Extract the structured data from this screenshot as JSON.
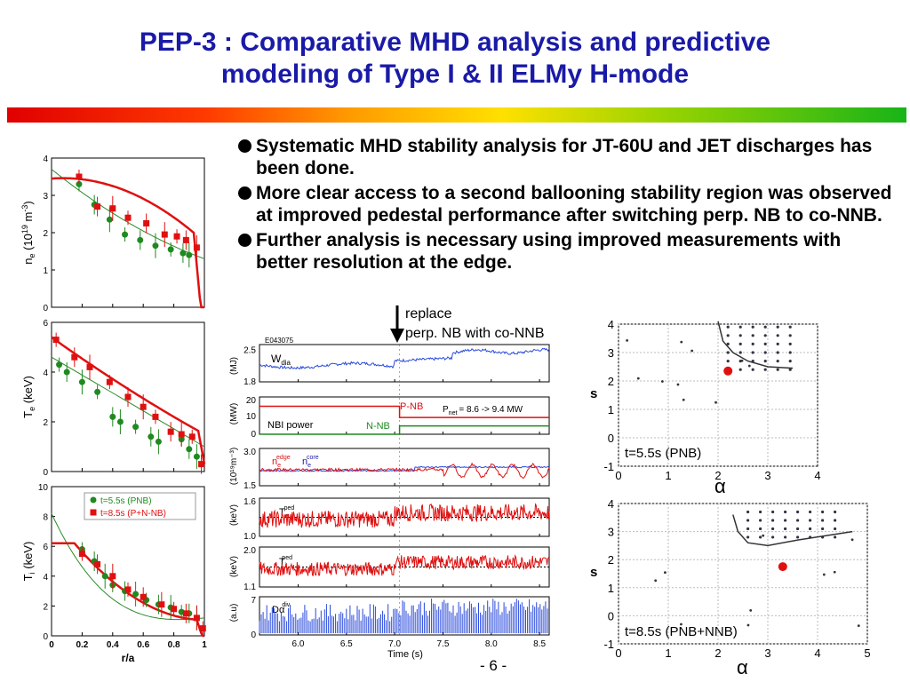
{
  "slide": {
    "title_line1": "PEP-3 : Comparative MHD analysis and predictive",
    "title_line2": "modeling of Type I & II ELMy H-mode",
    "bullets": [
      "Systematic MHD stability analysis for JT-60U and JET discharges has been done.",
      "More clear access to a second ballooning stability region was observed at improved pedestal performance after switching perp. NB to co-NNB.",
      "Further analysis is necessary using improved measurements with better resolution at the edge."
    ],
    "page_number": "- 6 -"
  },
  "profiles": {
    "ne_label": "n",
    "ne_sub": "e",
    "ne_unit_a": " (10",
    "ne_unit_sup": "19",
    "ne_unit_b": " m",
    "ne_unit_sup2": "-3",
    "ne_unit_c": ")",
    "te_label": "T",
    "te_sub": "e",
    "te_unit": " (keV)",
    "ti_label": "T",
    "ti_sub": "i",
    "ti_unit": " (keV)",
    "xlabel": "r/a",
    "legend_pnb": "t=5.5s (PNB)",
    "legend_pnnb": "t=8.5s (P+N-NB)",
    "colors": {
      "pnb": "#1f8a1f",
      "pnnb": "#e01010"
    }
  },
  "timetraces": {
    "shot": "E043075",
    "wdia": "W",
    "wdia_sub": "dia",
    "wdia_unit": "(MJ)",
    "nbi_unit": "(MW)",
    "nbi_label": "NBI power",
    "pnb_label": "P-NB",
    "nnb_label": "N-NB",
    "pnet_label": "P",
    "pnet_sub": "net",
    "pnet_value": "= 8.6  -> 9.4 MW",
    "ne_unit": "(10¹⁹m⁻³)",
    "ne_edge": "n",
    "ne_edge_sub": "e",
    "ne_edge_sup": "edge",
    "ne_core": "n",
    "ne_core_sub": "e",
    "ne_core_sup": "core",
    "te_unit": "(keV)",
    "te_label": "T",
    "te_sub": "e",
    "te_sup": "ped",
    "ti_unit": "(keV)",
    "ti_label": "T",
    "ti_sub": "i",
    "ti_sup": "ped",
    "da_unit": "(a.u)",
    "da_label": "Dα",
    "da_sup": "div",
    "xlabel": "Time (s)",
    "annotation_line1": "replace",
    "annotation_line2": "perp. NB with co-NNB"
  },
  "stability": {
    "ylabel": "s",
    "xlabel": "α",
    "top_label": "t=5.5s (PNB)",
    "bottom_label": "t=8.5s (PNB+NNB)"
  },
  "chart_data": [
    {
      "type": "scatter",
      "title": "",
      "xlabel": "r/a",
      "ylabel": "ne (10^19 m^-3)",
      "xlim": [
        0,
        1
      ],
      "ylim": [
        0,
        4
      ],
      "x_ticks": [
        "0",
        "0.2",
        "0.4",
        "0.6",
        "0.8",
        "1"
      ],
      "y_ticks": [
        "0",
        "1",
        "2",
        "3",
        "4"
      ],
      "series": [
        {
          "name": "t=5.5s (PNB)",
          "color": "#1f8a1f",
          "x": [
            0.18,
            0.28,
            0.38,
            0.48,
            0.58,
            0.68,
            0.78,
            0.86,
            0.9
          ],
          "y": [
            3.3,
            2.75,
            2.35,
            1.95,
            1.8,
            1.65,
            1.55,
            1.45,
            1.4
          ]
        },
        {
          "name": "t=8.5s (P+N-NB)",
          "color": "#e01010",
          "x": [
            0.18,
            0.3,
            0.4,
            0.5,
            0.62,
            0.74,
            0.82,
            0.88,
            0.95
          ],
          "y": [
            3.5,
            2.7,
            2.65,
            2.4,
            2.25,
            1.95,
            1.9,
            1.8,
            1.6
          ]
        }
      ]
    },
    {
      "type": "scatter",
      "title": "",
      "xlabel": "r/a",
      "ylabel": "Te (keV)",
      "xlim": [
        0,
        1
      ],
      "ylim": [
        0,
        6
      ],
      "x_ticks": [
        "0",
        "0.2",
        "0.4",
        "0.6",
        "0.8",
        "1"
      ],
      "y_ticks": [
        "0",
        "2",
        "4",
        "6"
      ],
      "series": [
        {
          "name": "t=5.5s (PNB)",
          "color": "#1f8a1f",
          "x": [
            0.05,
            0.1,
            0.2,
            0.3,
            0.4,
            0.45,
            0.55,
            0.65,
            0.7,
            0.85,
            0.9,
            0.95
          ],
          "y": [
            4.3,
            4.0,
            3.6,
            3.2,
            2.2,
            2.0,
            1.8,
            1.4,
            1.2,
            1.3,
            0.9,
            0.6
          ]
        },
        {
          "name": "t=8.5s (P+N-NB)",
          "color": "#e01010",
          "x": [
            0.03,
            0.15,
            0.25,
            0.38,
            0.5,
            0.6,
            0.68,
            0.78,
            0.85,
            0.92,
            0.98
          ],
          "y": [
            5.3,
            4.6,
            4.2,
            3.6,
            3.0,
            2.6,
            2.2,
            1.6,
            1.5,
            1.4,
            0.3
          ]
        }
      ]
    },
    {
      "type": "scatter",
      "title": "",
      "xlabel": "r/a",
      "ylabel": "Ti (keV)",
      "xlim": [
        0,
        1
      ],
      "ylim": [
        0,
        10
      ],
      "x_ticks": [
        "0",
        "0.2",
        "0.4",
        "0.6",
        "0.8",
        "1"
      ],
      "y_ticks": [
        "0",
        "2",
        "4",
        "6",
        "8",
        "10"
      ],
      "series": [
        {
          "name": "t=5.5s (PNB)",
          "color": "#1f8a1f",
          "x": [
            0.2,
            0.28,
            0.35,
            0.4,
            0.48,
            0.55,
            0.62,
            0.7,
            0.78,
            0.85,
            0.9,
            0.95
          ],
          "y": [
            5.8,
            5.0,
            4.0,
            3.4,
            3.0,
            2.8,
            2.4,
            2.1,
            1.9,
            1.6,
            1.5,
            1.2
          ]
        },
        {
          "name": "t=8.5s (P+N-NB)",
          "color": "#e01010",
          "x": [
            0.2,
            0.3,
            0.4,
            0.5,
            0.6,
            0.72,
            0.8,
            0.88,
            0.95,
            0.99
          ],
          "y": [
            5.5,
            4.8,
            4.0,
            3.1,
            2.6,
            2.1,
            1.8,
            1.5,
            1.2,
            0.5
          ]
        }
      ]
    },
    {
      "type": "line",
      "title": "",
      "xlabel": "Time (s)",
      "xlim": [
        5.6,
        8.6
      ],
      "x_ticks": [
        "6.0",
        "6.5",
        "7.0",
        "7.5",
        "8.0",
        "8.5"
      ],
      "panels": [
        {
          "label": "Wdia",
          "unit": "MJ",
          "y_ticks": [
            "1.8",
            "2.5"
          ],
          "ylim": [
            1.8,
            2.6
          ]
        },
        {
          "label": "NBI power",
          "unit": "MW",
          "y_ticks": [
            "0",
            "10",
            "20"
          ],
          "ylim": [
            0,
            20
          ],
          "series": [
            {
              "name": "P-NB",
              "x": [
                5.6,
                7.05,
                7.05,
                8.6
              ],
              "y": [
                15,
                15,
                9,
                9
              ]
            },
            {
              "name": "N-NB",
              "x": [
                5.6,
                7.05,
                7.05,
                8.6
              ],
              "y": [
                0,
                0,
                4.5,
                4.5
              ]
            }
          ]
        },
        {
          "label": "ne",
          "unit": "10^19 m^-3",
          "y_ticks": [
            "1.5",
            "3.0"
          ],
          "ylim": [
            1.5,
            3.0
          ]
        },
        {
          "label": "Te ped",
          "unit": "keV",
          "y_ticks": [
            "1.0",
            "1.6"
          ],
          "ylim": [
            1.0,
            1.6
          ]
        },
        {
          "label": "Ti ped",
          "unit": "keV",
          "y_ticks": [
            "1.1",
            "2.0"
          ],
          "ylim": [
            1.1,
            2.0
          ]
        },
        {
          "label": "Dα div",
          "unit": "a.u",
          "y_ticks": [
            "0",
            "7"
          ],
          "ylim": [
            0,
            7
          ]
        }
      ]
    },
    {
      "type": "scatter",
      "title": "t=5.5s (PNB)",
      "xlabel": "α",
      "ylabel": "s",
      "xlim": [
        0,
        4
      ],
      "ylim": [
        -1,
        4
      ],
      "x_ticks": [
        "0",
        "1",
        "2",
        "3",
        "4"
      ],
      "y_ticks": [
        "-1",
        "0",
        "1",
        "2",
        "3",
        "4"
      ],
      "series": [
        {
          "name": "operating point",
          "color": "#e01010",
          "x": [
            2.2
          ],
          "y": [
            2.35
          ]
        }
      ]
    },
    {
      "type": "scatter",
      "title": "t=8.5s (PNB+NNB)",
      "xlabel": "α",
      "ylabel": "s",
      "xlim": [
        0,
        5
      ],
      "ylim": [
        -1,
        4
      ],
      "x_ticks": [
        "0",
        "1",
        "2",
        "3",
        "4",
        "5"
      ],
      "y_ticks": [
        "-1",
        "0",
        "1",
        "2",
        "3",
        "4"
      ],
      "series": [
        {
          "name": "operating point",
          "color": "#e01010",
          "x": [
            3.3
          ],
          "y": [
            1.75
          ]
        }
      ]
    }
  ]
}
